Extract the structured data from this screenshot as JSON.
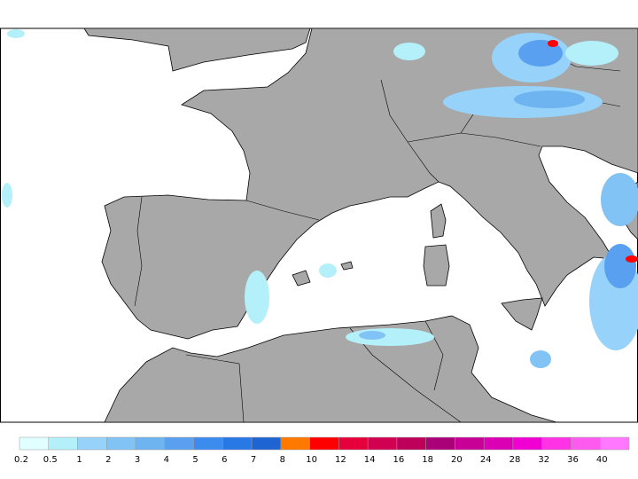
{
  "legend": {
    "labels": [
      "0.2",
      "0.5",
      "1",
      "2",
      "3",
      "4",
      "5",
      "6",
      "7",
      "8",
      "10",
      "12",
      "14",
      "16",
      "18",
      "20",
      "24",
      "28",
      "32",
      "36",
      "40"
    ],
    "colors": [
      "#e1ffff",
      "#b4f0fa",
      "#96d2fa",
      "#82c3f5",
      "#6eb4f0",
      "#5aa0f0",
      "#3c8cf0",
      "#2878e6",
      "#1e64d2",
      "#ff7800",
      "#ff0000",
      "#e6003c",
      "#d20050",
      "#be005a",
      "#aa0078",
      "#c80096",
      "#dc00b4",
      "#f000d2",
      "#ff32e6",
      "#ff5af0",
      "#ff78ff"
    ]
  }
}
